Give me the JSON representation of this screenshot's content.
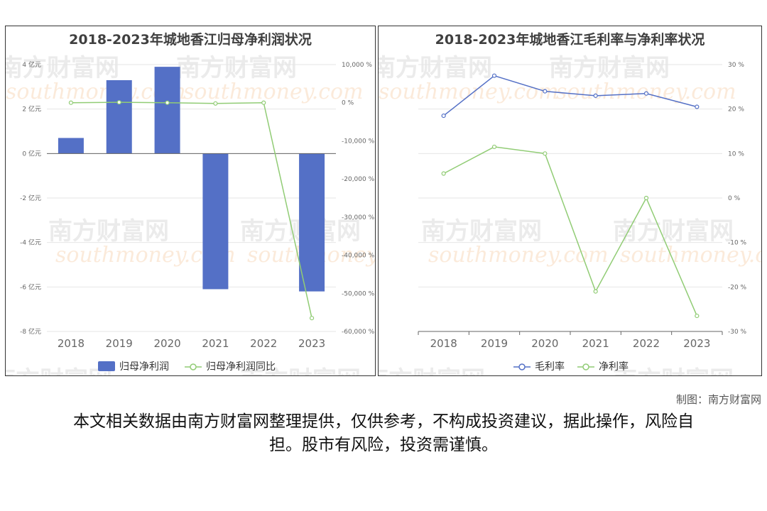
{
  "charts": [
    {
      "title": "2018-2023年城地香江归母净利润状况",
      "chart_data": {
        "type": "bar+line",
        "categories": [
          "2018",
          "2019",
          "2020",
          "2021",
          "2022",
          "2023"
        ],
        "series": [
          {
            "name": "归母净利润",
            "type": "bar",
            "axis": "left",
            "color": "#5470c6",
            "values": [
              0.7,
              3.3,
              3.9,
              -6.1,
              0,
              -6.2
            ]
          },
          {
            "name": "归母净利润同比",
            "type": "line",
            "axis": "right",
            "color": "#91cc75",
            "values": [
              0,
              100,
              0,
              -200,
              0,
              -56500
            ]
          }
        ],
        "left_axis": {
          "min": -8,
          "max": 4,
          "ticks": [
            4,
            2,
            0,
            -2,
            -4,
            -6,
            -8
          ],
          "tick_labels": [
            "4 亿元",
            "2 亿元",
            "0 亿元",
            "-2 亿元",
            "-4 亿元",
            "-6 亿元",
            "-8 亿元"
          ]
        },
        "right_axis": {
          "min": -60000,
          "max": 10000,
          "ticks": [
            10000,
            0,
            -10000,
            -20000,
            -30000,
            -40000,
            -50000,
            -60000
          ],
          "tick_labels": [
            "10,000 %",
            "0 %",
            "-10,000 %",
            "-20,000 %",
            "-30,000 %",
            "-40,000 %",
            "-50,000 %",
            "-60,000 %"
          ]
        },
        "legend_position": "bottom-center",
        "grid": true
      }
    },
    {
      "title": "2018-2023年城地香江毛利率与净利率状况",
      "chart_data": {
        "type": "line",
        "categories": [
          "2018",
          "2019",
          "2020",
          "2021",
          "2022",
          "2023"
        ],
        "series": [
          {
            "name": "毛利率",
            "color": "#5470c6",
            "values": [
              18.5,
              27.5,
              24.0,
              23.0,
              23.5,
              20.5
            ]
          },
          {
            "name": "净利率",
            "color": "#91cc75",
            "values": [
              5.5,
              11.5,
              10.0,
              -21.0,
              0,
              -26.5
            ]
          }
        ],
        "right_axis": {
          "min": -30,
          "max": 30,
          "ticks": [
            30,
            20,
            10,
            0,
            -10,
            -20,
            -30
          ],
          "tick_labels": [
            "30 %",
            "20 %",
            "10 %",
            "0 %",
            "-10 %",
            "-20 %",
            "-30 %"
          ]
        },
        "legend_position": "bottom-center",
        "grid": true
      }
    }
  ],
  "watermark": {
    "cn": "南方财富网",
    "en": "southmoney.com"
  },
  "credit": "制图：南方财富网",
  "disclaimer": "本文相关数据由南方财富网整理提供，仅供参考，不构成投资建议，据此操作，风险自担。股市有风险，投资需谨慎。"
}
